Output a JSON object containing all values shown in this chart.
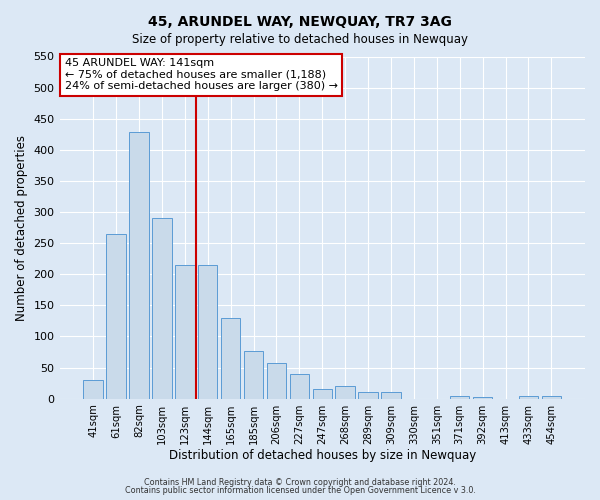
{
  "title": "45, ARUNDEL WAY, NEWQUAY, TR7 3AG",
  "subtitle": "Size of property relative to detached houses in Newquay",
  "xlabel": "Distribution of detached houses by size in Newquay",
  "ylabel": "Number of detached properties",
  "bar_labels": [
    "41sqm",
    "61sqm",
    "82sqm",
    "103sqm",
    "123sqm",
    "144sqm",
    "165sqm",
    "185sqm",
    "206sqm",
    "227sqm",
    "247sqm",
    "268sqm",
    "289sqm",
    "309sqm",
    "330sqm",
    "351sqm",
    "371sqm",
    "392sqm",
    "413sqm",
    "433sqm",
    "454sqm"
  ],
  "bar_values": [
    30,
    265,
    428,
    291,
    215,
    215,
    130,
    76,
    58,
    40,
    16,
    20,
    10,
    10,
    0,
    0,
    5,
    3,
    0,
    5,
    5
  ],
  "bar_color": "#c9daea",
  "bar_edge_color": "#5b9bd5",
  "vline_color": "#cc0000",
  "vline_index": 5,
  "ylim": [
    0,
    550
  ],
  "yticks": [
    0,
    50,
    100,
    150,
    200,
    250,
    300,
    350,
    400,
    450,
    500,
    550
  ],
  "annotation_title": "45 ARUNDEL WAY: 141sqm",
  "annotation_line1": "← 75% of detached houses are smaller (1,188)",
  "annotation_line2": "24% of semi-detached houses are larger (380) →",
  "annotation_box_color": "#ffffff",
  "annotation_box_edge": "#cc0000",
  "footer1": "Contains HM Land Registry data © Crown copyright and database right 2024.",
  "footer2": "Contains public sector information licensed under the Open Government Licence v 3.0.",
  "bg_color": "#dce8f5",
  "plot_bg_color": "#dce8f5"
}
